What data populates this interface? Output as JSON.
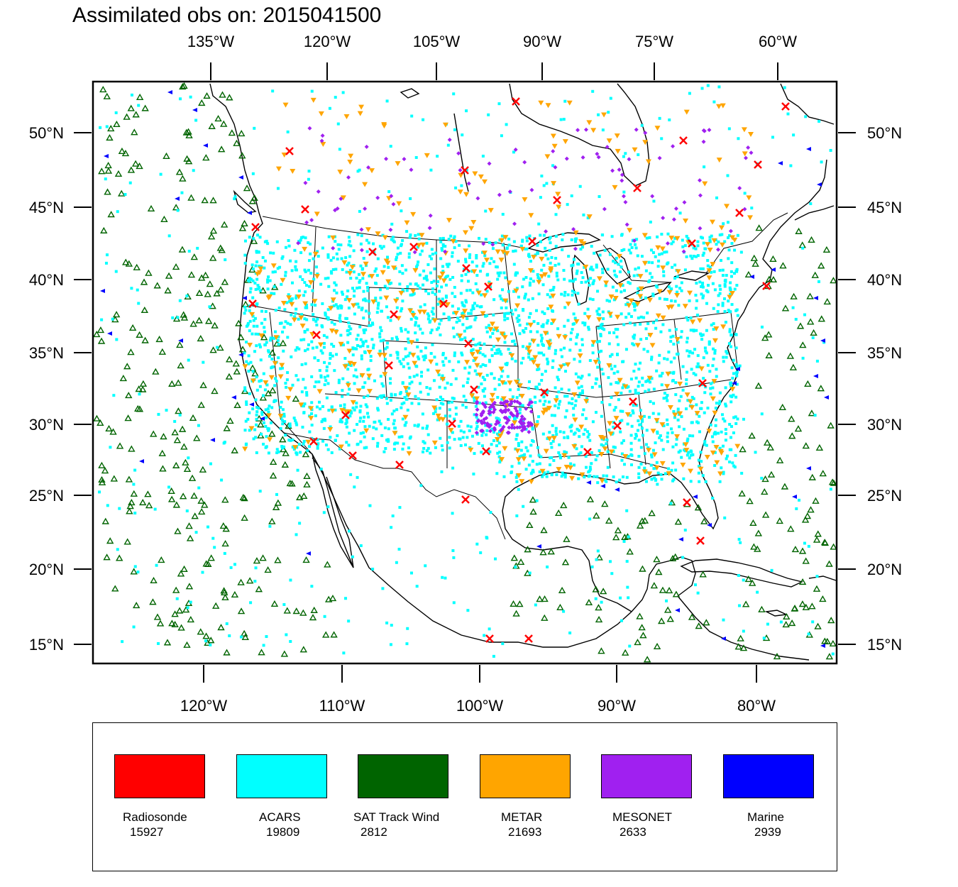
{
  "title": "Assimilated obs on: 2015041500",
  "map": {
    "top_lon_labels": [
      "135°W",
      "120°W",
      "105°W",
      "90°W",
      "75°W",
      "60°W"
    ],
    "bottom_lon_labels": [
      "120°W",
      "110°W",
      "100°W",
      "90°W",
      "80°W"
    ],
    "lat_labels": [
      "50°N",
      "45°N",
      "40°N",
      "35°N",
      "30°N",
      "25°N",
      "20°N",
      "15°N"
    ],
    "background": "#ffffff",
    "coast_color": "#000000"
  },
  "legend": {
    "items": [
      {
        "name": "Radiosonde",
        "count": "15927",
        "color": "#ff0000",
        "marker": "cross"
      },
      {
        "name": "ACARS",
        "count": "19809",
        "color": "#00ffff",
        "marker": "dot"
      },
      {
        "name": "SAT Track Wind",
        "count": "2812",
        "color": "#006400",
        "marker": "triangle-up"
      },
      {
        "name": "METAR",
        "count": "21693",
        "color": "#ffa500",
        "marker": "triangle-down"
      },
      {
        "name": "MESONET",
        "count": "2633",
        "color": "#a020f0",
        "marker": "diamond"
      },
      {
        "name": "Marine",
        "count": "2939",
        "color": "#0000ff",
        "marker": "triangle-left"
      }
    ]
  }
}
